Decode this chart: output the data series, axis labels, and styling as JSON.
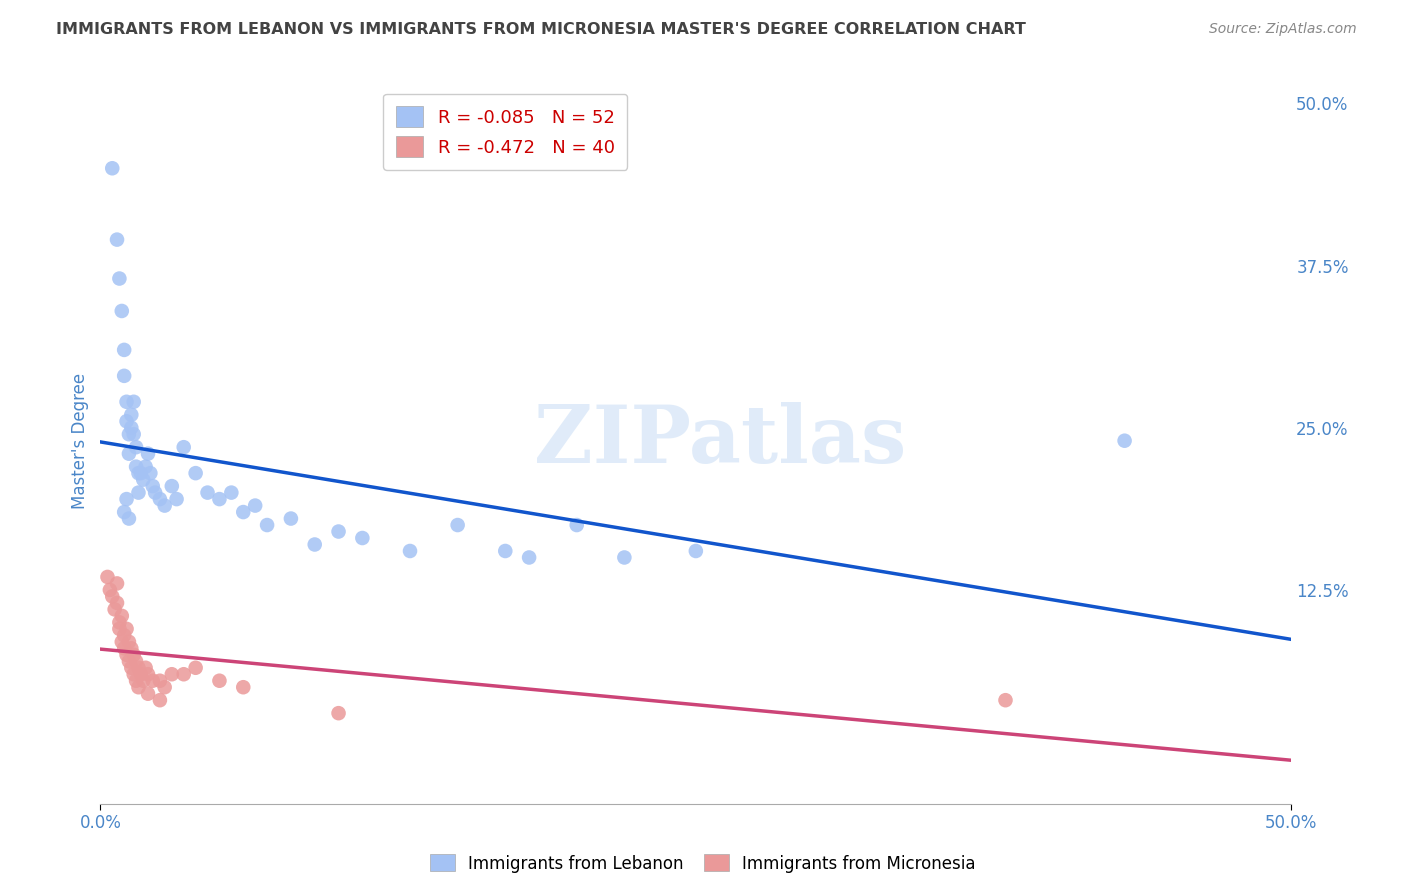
{
  "title": "IMMIGRANTS FROM LEBANON VS IMMIGRANTS FROM MICRONESIA MASTER'S DEGREE CORRELATION CHART",
  "source": "Source: ZipAtlas.com",
  "ylabel": "Master's Degree",
  "legend_label1": "Immigrants from Lebanon",
  "legend_label2": "Immigrants from Micronesia",
  "r1": -0.085,
  "n1": 52,
  "r2": -0.472,
  "n2": 40,
  "blue_color": "#a4c2f4",
  "pink_color": "#ea9999",
  "blue_line_color": "#1155cc",
  "pink_line_color": "#cc4477",
  "title_color": "#434343",
  "axis_label_color": "#4a86c8",
  "watermark": "ZIPatlas",
  "blue_x": [
    0.005,
    0.007,
    0.008,
    0.009,
    0.01,
    0.01,
    0.011,
    0.011,
    0.012,
    0.012,
    0.013,
    0.013,
    0.014,
    0.014,
    0.015,
    0.015,
    0.016,
    0.016,
    0.017,
    0.018,
    0.019,
    0.02,
    0.021,
    0.022,
    0.023,
    0.025,
    0.027,
    0.03,
    0.032,
    0.035,
    0.04,
    0.045,
    0.05,
    0.055,
    0.06,
    0.065,
    0.07,
    0.08,
    0.09,
    0.1,
    0.11,
    0.13,
    0.15,
    0.17,
    0.2,
    0.22,
    0.25,
    0.01,
    0.011,
    0.012,
    0.43,
    0.18
  ],
  "blue_y": [
    0.45,
    0.395,
    0.365,
    0.34,
    0.31,
    0.29,
    0.27,
    0.255,
    0.245,
    0.23,
    0.26,
    0.25,
    0.27,
    0.245,
    0.235,
    0.22,
    0.215,
    0.2,
    0.215,
    0.21,
    0.22,
    0.23,
    0.215,
    0.205,
    0.2,
    0.195,
    0.19,
    0.205,
    0.195,
    0.235,
    0.215,
    0.2,
    0.195,
    0.2,
    0.185,
    0.19,
    0.175,
    0.18,
    0.16,
    0.17,
    0.165,
    0.155,
    0.175,
    0.155,
    0.175,
    0.15,
    0.155,
    0.185,
    0.195,
    0.18,
    0.24,
    0.15
  ],
  "pink_x": [
    0.003,
    0.004,
    0.005,
    0.006,
    0.007,
    0.008,
    0.009,
    0.01,
    0.011,
    0.012,
    0.013,
    0.014,
    0.015,
    0.016,
    0.017,
    0.018,
    0.019,
    0.02,
    0.022,
    0.025,
    0.027,
    0.03,
    0.035,
    0.04,
    0.05,
    0.06,
    0.007,
    0.008,
    0.009,
    0.01,
    0.011,
    0.012,
    0.013,
    0.014,
    0.015,
    0.016,
    0.02,
    0.025,
    0.38,
    0.1
  ],
  "pink_y": [
    0.135,
    0.125,
    0.12,
    0.11,
    0.115,
    0.1,
    0.105,
    0.09,
    0.095,
    0.085,
    0.08,
    0.075,
    0.07,
    0.065,
    0.06,
    0.055,
    0.065,
    0.06,
    0.055,
    0.055,
    0.05,
    0.06,
    0.06,
    0.065,
    0.055,
    0.05,
    0.13,
    0.095,
    0.085,
    0.08,
    0.075,
    0.07,
    0.065,
    0.06,
    0.055,
    0.05,
    0.045,
    0.04,
    0.04,
    0.03
  ],
  "xlim": [
    0.0,
    0.5
  ],
  "ylim": [
    -0.04,
    0.52
  ],
  "yticks": [
    0.125,
    0.25,
    0.375,
    0.5
  ],
  "xticks": [
    0.0,
    0.5
  ],
  "grid_color": "#cccccc"
}
